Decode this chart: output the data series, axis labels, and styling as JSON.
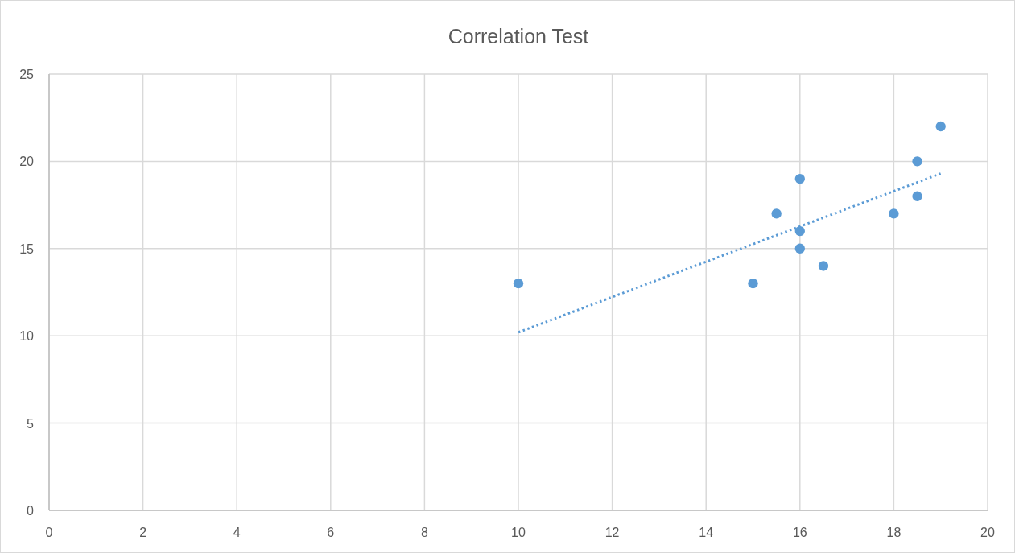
{
  "chart_data": {
    "type": "scatter",
    "title": "Correlation Test",
    "xlim": [
      0,
      20
    ],
    "xticks": [
      0,
      2,
      4,
      6,
      8,
      10,
      12,
      14,
      16,
      18,
      20
    ],
    "ylim": [
      0,
      25
    ],
    "yticks": [
      0,
      5,
      10,
      15,
      20,
      25
    ],
    "grid": true,
    "marker": "circle",
    "series": [
      {
        "color": "#5b9bd5",
        "x": [
          10,
          15,
          15.5,
          16,
          16,
          16,
          16.5,
          18,
          18.5,
          18.5,
          19
        ],
        "values": [
          13,
          13,
          17,
          19,
          16,
          15,
          14,
          17,
          20,
          18,
          22
        ]
      },
      {
        "type": "line",
        "color": "#5b9bd5",
        "line_style": "dotted",
        "marker": "none",
        "x": [
          10,
          19
        ],
        "values": [
          10.2,
          19.3
        ]
      }
    ]
  }
}
